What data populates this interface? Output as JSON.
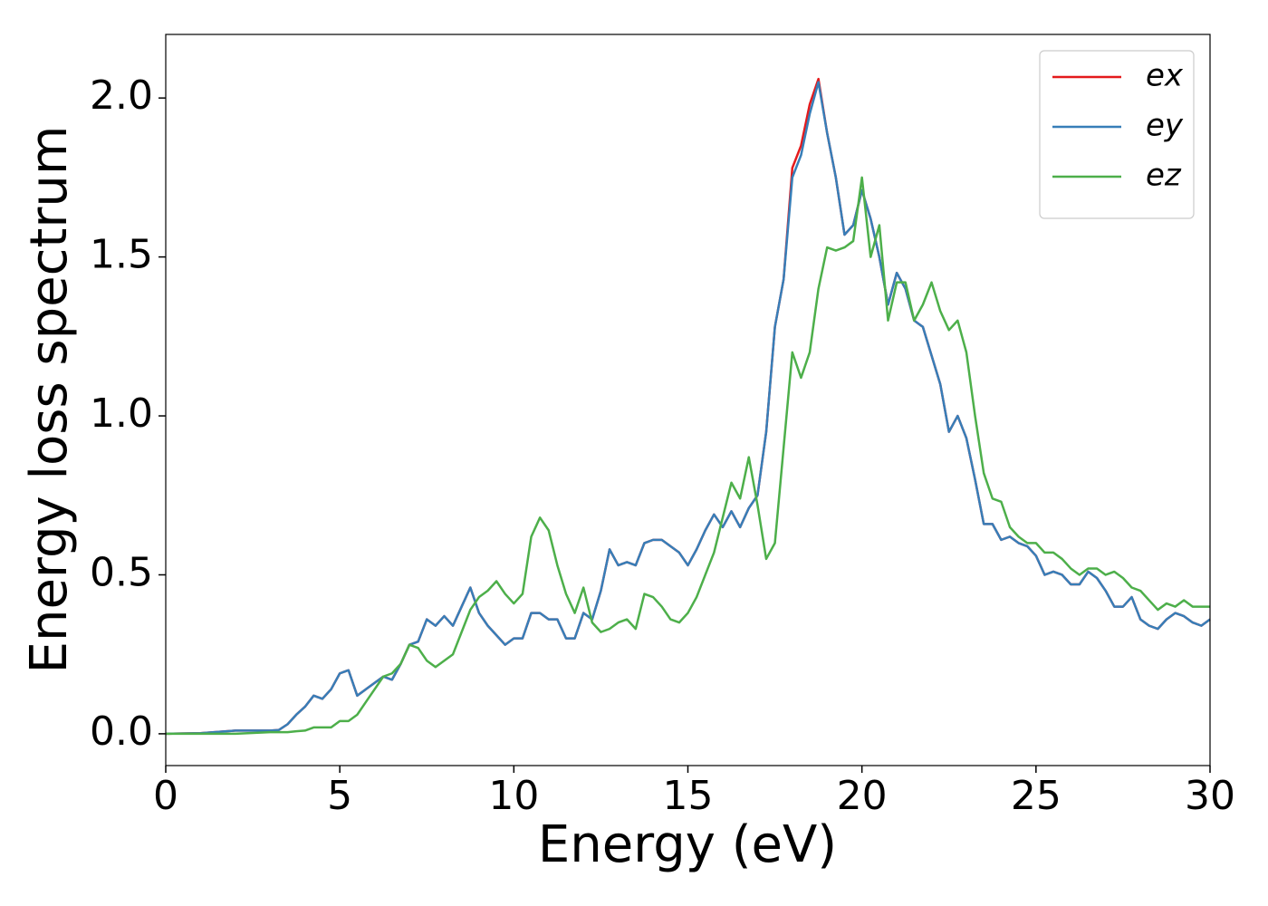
{
  "chart_data": {
    "type": "line",
    "xlabel": "Energy (eV)",
    "ylabel": "Energy loss spectrum",
    "xlim": [
      0,
      30
    ],
    "ylim": [
      -0.1,
      2.2
    ],
    "xticks": [
      0,
      5,
      10,
      15,
      20,
      25,
      30
    ],
    "yticks": [
      {
        "value": 0,
        "label": "0.0"
      },
      0.5,
      {
        "value": 1,
        "label": "1.0"
      },
      1.5,
      {
        "value": 2,
        "label": "2.0"
      }
    ],
    "legend": "upper right",
    "grid": false,
    "x": [
      0,
      1,
      2,
      3,
      3.25,
      3.5,
      3.75,
      4,
      4.25,
      4.5,
      4.75,
      5,
      5.25,
      5.5,
      5.75,
      6,
      6.25,
      6.5,
      6.75,
      7,
      7.25,
      7.5,
      7.75,
      8,
      8.25,
      8.5,
      8.75,
      9,
      9.25,
      9.5,
      9.75,
      10,
      10.25,
      10.5,
      10.75,
      11,
      11.25,
      11.5,
      11.75,
      12,
      12.25,
      12.5,
      12.75,
      13,
      13.25,
      13.5,
      13.75,
      14,
      14.25,
      14.5,
      14.75,
      15,
      15.25,
      15.5,
      15.75,
      16,
      16.25,
      16.5,
      16.75,
      17,
      17.25,
      17.5,
      17.75,
      18,
      18.25,
      18.5,
      18.75,
      19,
      19.25,
      19.5,
      19.75,
      20,
      20.25,
      20.5,
      20.75,
      21,
      21.25,
      21.5,
      21.75,
      22,
      22.25,
      22.5,
      22.75,
      23,
      23.25,
      23.5,
      23.75,
      24,
      24.25,
      24.5,
      24.75,
      25,
      25.25,
      25.5,
      25.75,
      26,
      26.25,
      26.5,
      26.75,
      27,
      27.25,
      27.5,
      27.75,
      28,
      28.25,
      28.5,
      28.75,
      29,
      29.25,
      29.5,
      29.75,
      30
    ],
    "series": [
      {
        "name": "ex",
        "color": "#e41a1c",
        "values": [
          0,
          0.002,
          0.01,
          0.01,
          0.012,
          0.03,
          0.06,
          0.085,
          0.12,
          0.11,
          0.14,
          0.19,
          0.2,
          0.12,
          0.14,
          0.16,
          0.18,
          0.17,
          0.22,
          0.28,
          0.29,
          0.36,
          0.34,
          0.37,
          0.34,
          0.4,
          0.46,
          0.38,
          0.34,
          0.31,
          0.28,
          0.3,
          0.3,
          0.38,
          0.38,
          0.36,
          0.36,
          0.3,
          0.3,
          0.38,
          0.36,
          0.45,
          0.58,
          0.53,
          0.54,
          0.53,
          0.6,
          0.61,
          0.61,
          0.59,
          0.57,
          0.53,
          0.58,
          0.64,
          0.69,
          0.65,
          0.7,
          0.65,
          0.71,
          0.75,
          0.95,
          1.28,
          1.43,
          1.78,
          1.85,
          1.98,
          2.06,
          1.89,
          1.75,
          1.57,
          1.6,
          1.71,
          1.62,
          1.5,
          1.35,
          1.45,
          1.4,
          1.3,
          1.28,
          1.19,
          1.1,
          0.95,
          1.0,
          0.93,
          0.8,
          0.66,
          0.66,
          0.61,
          0.62,
          0.6,
          0.59,
          0.56,
          0.5,
          0.51,
          0.5,
          0.47,
          0.47,
          0.51,
          0.49,
          0.45,
          0.4,
          0.4,
          0.43,
          0.36,
          0.34,
          0.33,
          0.36,
          0.38,
          0.37,
          0.35,
          0.34,
          0.36
        ]
      },
      {
        "name": "ey",
        "color": "#377eb8",
        "values": [
          0,
          0.002,
          0.01,
          0.01,
          0.012,
          0.03,
          0.06,
          0.085,
          0.12,
          0.11,
          0.14,
          0.19,
          0.2,
          0.12,
          0.14,
          0.16,
          0.18,
          0.17,
          0.22,
          0.28,
          0.29,
          0.36,
          0.34,
          0.37,
          0.34,
          0.4,
          0.46,
          0.38,
          0.34,
          0.31,
          0.28,
          0.3,
          0.3,
          0.38,
          0.38,
          0.36,
          0.36,
          0.3,
          0.3,
          0.38,
          0.36,
          0.45,
          0.58,
          0.53,
          0.54,
          0.53,
          0.6,
          0.61,
          0.61,
          0.59,
          0.57,
          0.53,
          0.58,
          0.64,
          0.69,
          0.65,
          0.7,
          0.65,
          0.71,
          0.75,
          0.95,
          1.28,
          1.43,
          1.75,
          1.82,
          1.95,
          2.05,
          1.89,
          1.75,
          1.57,
          1.6,
          1.71,
          1.62,
          1.5,
          1.35,
          1.45,
          1.4,
          1.3,
          1.28,
          1.19,
          1.1,
          0.95,
          1.0,
          0.93,
          0.8,
          0.66,
          0.66,
          0.61,
          0.62,
          0.6,
          0.59,
          0.56,
          0.5,
          0.51,
          0.5,
          0.47,
          0.47,
          0.51,
          0.49,
          0.45,
          0.4,
          0.4,
          0.43,
          0.36,
          0.34,
          0.33,
          0.36,
          0.38,
          0.37,
          0.35,
          0.34,
          0.36
        ]
      },
      {
        "name": "ez",
        "color": "#4daf4a",
        "values": [
          0,
          0,
          0,
          0.005,
          0.005,
          0.005,
          0.008,
          0.01,
          0.02,
          0.02,
          0.02,
          0.04,
          0.04,
          0.06,
          0.1,
          0.14,
          0.18,
          0.19,
          0.22,
          0.28,
          0.27,
          0.23,
          0.21,
          0.23,
          0.25,
          0.32,
          0.39,
          0.43,
          0.45,
          0.48,
          0.44,
          0.41,
          0.44,
          0.62,
          0.68,
          0.64,
          0.53,
          0.44,
          0.38,
          0.46,
          0.35,
          0.32,
          0.33,
          0.35,
          0.36,
          0.33,
          0.44,
          0.43,
          0.4,
          0.36,
          0.35,
          0.38,
          0.43,
          0.5,
          0.57,
          0.68,
          0.79,
          0.74,
          0.87,
          0.72,
          0.55,
          0.6,
          0.9,
          1.2,
          1.12,
          1.2,
          1.4,
          1.53,
          1.52,
          1.53,
          1.55,
          1.75,
          1.5,
          1.6,
          1.3,
          1.42,
          1.42,
          1.3,
          1.35,
          1.42,
          1.33,
          1.27,
          1.3,
          1.2,
          1.0,
          0.82,
          0.74,
          0.73,
          0.65,
          0.62,
          0.6,
          0.6,
          0.57,
          0.57,
          0.55,
          0.52,
          0.5,
          0.52,
          0.52,
          0.5,
          0.51,
          0.49,
          0.46,
          0.45,
          0.42,
          0.39,
          0.41,
          0.4,
          0.42,
          0.4,
          0.4,
          0.4
        ]
      }
    ]
  }
}
